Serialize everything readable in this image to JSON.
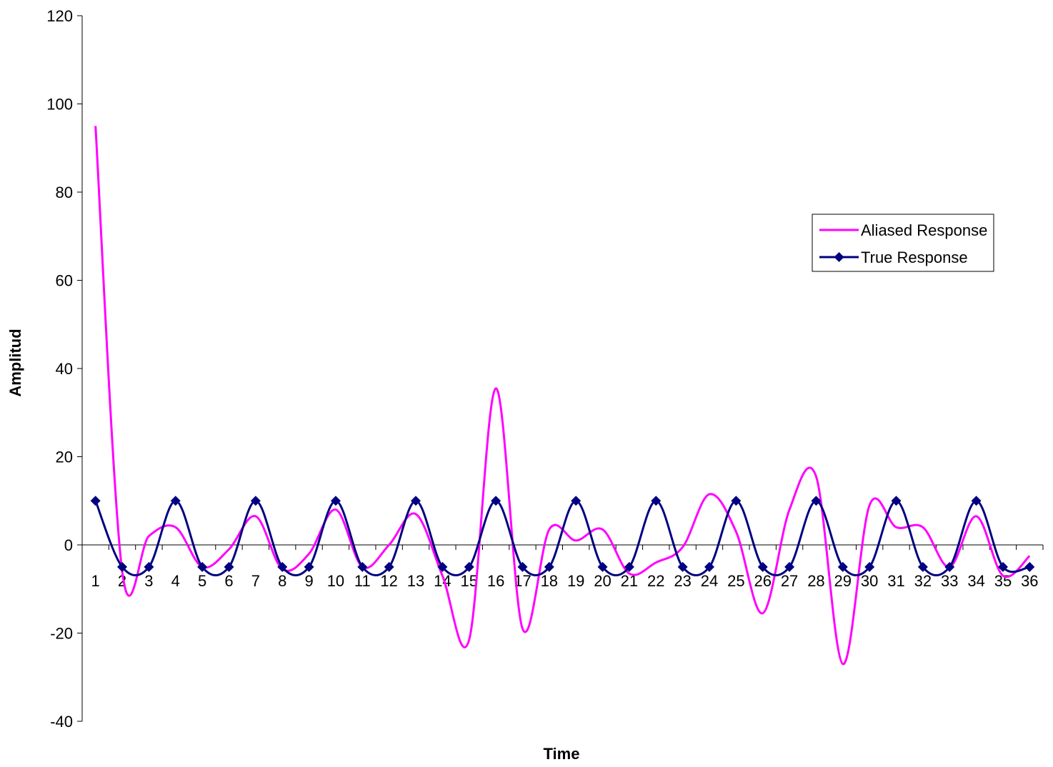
{
  "chart_data": {
    "type": "line",
    "title": "",
    "xlabel": "Time",
    "ylabel": "Amplitud",
    "ylim": [
      -40,
      120
    ],
    "yticks": [
      -40,
      -20,
      0,
      20,
      40,
      60,
      80,
      100,
      120
    ],
    "x": [
      1,
      2,
      3,
      4,
      5,
      6,
      7,
      8,
      9,
      10,
      11,
      12,
      13,
      14,
      15,
      16,
      17,
      18,
      19,
      20,
      21,
      22,
      23,
      24,
      25,
      26,
      27,
      28,
      29,
      30,
      31,
      32,
      33,
      34,
      35,
      36
    ],
    "grid": false,
    "legend_position": "right",
    "series": [
      {
        "name": "Aliased Response",
        "color": "#ff00ff",
        "marker": "none",
        "smooth": true,
        "values": [
          95,
          -6,
          2,
          4,
          -5,
          -1,
          6.5,
          -5.5,
          -2,
          8,
          -5,
          0,
          7,
          -7,
          -21.5,
          35.5,
          -19,
          3.5,
          1,
          3.5,
          -6.5,
          -4,
          -0.5,
          11.5,
          3,
          -15.5,
          8,
          15.5,
          -27,
          9,
          4,
          4,
          -5,
          6.5,
          -7,
          -2.5
        ]
      },
      {
        "name": "True Response",
        "color": "#000080",
        "marker": "diamond",
        "smooth": true,
        "values": [
          10,
          -5,
          -5,
          10,
          -5,
          -5,
          10,
          -5,
          -5,
          10,
          -5,
          -5,
          10,
          -5,
          -5,
          10,
          -5,
          -5,
          10,
          -5,
          -5,
          10,
          -5,
          -5,
          10,
          -5,
          -5,
          10,
          -5,
          -5,
          10,
          -5,
          -5,
          10,
          -5,
          -5
        ]
      }
    ]
  }
}
